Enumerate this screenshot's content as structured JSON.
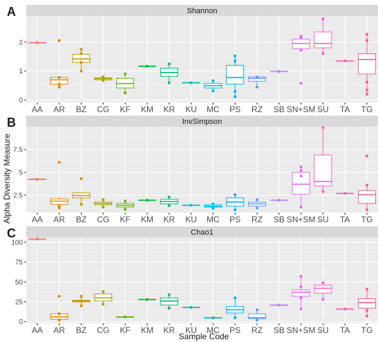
{
  "chart_data": {
    "type": "box",
    "xlabel": "Sample Code",
    "ylabel": "Alpha Diversity Measure",
    "categories": [
      "AA",
      "AR",
      "BZ",
      "CG",
      "KF",
      "KM",
      "KR",
      "KU",
      "MC",
      "PS",
      "RZ",
      "SB",
      "SN+SM",
      "SU",
      "TA",
      "TG"
    ],
    "colors": [
      "#F8766D",
      "#E58700",
      "#C99800",
      "#A3A500",
      "#6BB100",
      "#00BA38",
      "#00BF7D",
      "#00C0AF",
      "#00BCD8",
      "#00B0F6",
      "#619CFF",
      "#B983FF",
      "#E76BF3",
      "#FD61D1",
      "#FF67A4",
      "#F0609A"
    ],
    "panels": [
      {
        "letter": "A",
        "title": "Shannon",
        "ylim": [
          -0.08,
          2.9
        ],
        "yticks": [
          0,
          1,
          2
        ],
        "boxes": [
          {
            "cat": "AA",
            "q1": 1.98,
            "med": 1.98,
            "q3": 1.98,
            "lo": 1.98,
            "hi": 1.98,
            "points": [
              1.98
            ]
          },
          {
            "cat": "AR",
            "q1": 0.55,
            "med": 0.7,
            "q3": 0.78,
            "lo": 0.45,
            "hi": 0.8,
            "points": [
              0.45,
              0.55,
              0.78,
              2.05
            ]
          },
          {
            "cat": "BZ",
            "q1": 1.3,
            "med": 1.42,
            "q3": 1.58,
            "lo": 1.0,
            "hi": 1.75,
            "points": [
              1.0,
              1.3,
              1.6,
              1.75
            ]
          },
          {
            "cat": "CG",
            "q1": 0.7,
            "med": 0.74,
            "q3": 0.77,
            "lo": 0.67,
            "hi": 0.8,
            "points": [
              0.68,
              0.74,
              0.8
            ]
          },
          {
            "cat": "KF",
            "q1": 0.42,
            "med": 0.57,
            "q3": 0.75,
            "lo": 0.23,
            "hi": 0.92,
            "points": [
              0.25,
              0.9
            ]
          },
          {
            "cat": "KM",
            "q1": 1.17,
            "med": 1.17,
            "q3": 1.17,
            "lo": 1.17,
            "hi": 1.17,
            "points": [
              1.17
            ]
          },
          {
            "cat": "KR",
            "q1": 0.82,
            "med": 0.95,
            "q3": 1.1,
            "lo": 0.6,
            "hi": 1.25,
            "points": [
              0.6,
              1.25
            ]
          },
          {
            "cat": "KU",
            "q1": 0.6,
            "med": 0.6,
            "q3": 0.6,
            "lo": 0.6,
            "hi": 0.6,
            "points": [
              0.6
            ]
          },
          {
            "cat": "MC",
            "q1": 0.42,
            "med": 0.5,
            "q3": 0.58,
            "lo": 0.32,
            "hi": 0.67,
            "points": [
              0.32,
              0.67
            ]
          },
          {
            "cat": "PS",
            "q1": 0.55,
            "med": 0.78,
            "q3": 1.2,
            "lo": 0.12,
            "hi": 1.52,
            "points": [
              0.12,
              0.3,
              1.35,
              1.52
            ]
          },
          {
            "cat": "RZ",
            "q1": 0.65,
            "med": 0.75,
            "q3": 0.8,
            "lo": 0.45,
            "hi": 0.8,
            "points": [
              0.45,
              0.8
            ]
          },
          {
            "cat": "SB",
            "q1": 0.99,
            "med": 0.99,
            "q3": 0.99,
            "lo": 0.99,
            "hi": 0.99,
            "points": [
              0.99
            ]
          },
          {
            "cat": "SN+SM",
            "q1": 1.77,
            "med": 1.95,
            "q3": 2.1,
            "lo": 1.72,
            "hi": 2.2,
            "points": [
              0.58,
              1.72,
              2.15,
              2.2
            ]
          },
          {
            "cat": "SU",
            "q1": 1.8,
            "med": 1.95,
            "q3": 2.35,
            "lo": 1.6,
            "hi": 2.8,
            "points": [
              1.6,
              2.8
            ]
          },
          {
            "cat": "TA",
            "q1": 1.35,
            "med": 1.35,
            "q3": 1.35,
            "lo": 1.35,
            "hi": 1.35,
            "points": [
              1.35
            ]
          },
          {
            "cat": "TG",
            "q1": 0.9,
            "med": 1.4,
            "q3": 1.6,
            "lo": 0.2,
            "hi": 2.27,
            "points": [
              0.2,
              0.35,
              0.62,
              2.05,
              2.27
            ]
          }
        ]
      },
      {
        "letter": "B",
        "title": "InvSimpson",
        "ylim": [
          0.6,
          10.0
        ],
        "yticks": [
          2.5,
          5.0,
          7.5
        ],
        "boxes": [
          {
            "cat": "AA",
            "q1": 4.25,
            "med": 4.25,
            "q3": 4.25,
            "lo": 4.25,
            "hi": 4.25,
            "points": [
              4.25
            ]
          },
          {
            "cat": "AR",
            "q1": 1.5,
            "med": 1.85,
            "q3": 2.1,
            "lo": 1.1,
            "hi": 2.3,
            "points": [
              1.1,
              1.3,
              6.1
            ]
          },
          {
            "cat": "BZ",
            "q1": 2.2,
            "med": 2.45,
            "q3": 2.75,
            "lo": 1.5,
            "hi": 2.8,
            "points": [
              1.5,
              4.3
            ]
          },
          {
            "cat": "CG",
            "q1": 1.45,
            "med": 1.6,
            "q3": 1.75,
            "lo": 1.2,
            "hi": 2.0,
            "points": [
              1.2,
              2.0
            ]
          },
          {
            "cat": "KF",
            "q1": 1.2,
            "med": 1.4,
            "q3": 1.6,
            "lo": 0.9,
            "hi": 1.9,
            "points": [
              0.95,
              1.85
            ]
          },
          {
            "cat": "KM",
            "q1": 1.95,
            "med": 1.95,
            "q3": 1.95,
            "lo": 1.95,
            "hi": 1.95,
            "points": [
              1.95
            ]
          },
          {
            "cat": "KR",
            "q1": 1.55,
            "med": 1.8,
            "q3": 2.05,
            "lo": 1.35,
            "hi": 2.3,
            "points": [
              1.35,
              2.3
            ]
          },
          {
            "cat": "KU",
            "q1": 1.4,
            "med": 1.4,
            "q3": 1.4,
            "lo": 1.4,
            "hi": 1.4,
            "points": [
              1.4
            ]
          },
          {
            "cat": "MC",
            "q1": 1.2,
            "med": 1.3,
            "q3": 1.45,
            "lo": 1.05,
            "hi": 1.55,
            "points": [
              1.05,
              1.55
            ]
          },
          {
            "cat": "PS",
            "q1": 1.3,
            "med": 1.75,
            "q3": 2.2,
            "lo": 0.9,
            "hi": 2.7,
            "points": [
              0.9,
              2.55
            ]
          },
          {
            "cat": "RZ",
            "q1": 1.3,
            "med": 1.55,
            "q3": 1.75,
            "lo": 1.1,
            "hi": 2.0,
            "points": [
              1.1,
              2.0
            ]
          },
          {
            "cat": "SB",
            "q1": 1.95,
            "med": 1.95,
            "q3": 1.95,
            "lo": 1.95,
            "hi": 1.95,
            "points": [
              1.95
            ]
          },
          {
            "cat": "SN+SM",
            "q1": 2.6,
            "med": 3.7,
            "q3": 5.0,
            "lo": 1.2,
            "hi": 5.6,
            "points": [
              1.2,
              4.6,
              5.2,
              5.6
            ]
          },
          {
            "cat": "SU",
            "q1": 3.5,
            "med": 4.0,
            "q3": 6.9,
            "lo": 2.9,
            "hi": 9.9,
            "points": [
              2.9,
              9.9
            ]
          },
          {
            "cat": "TA",
            "q1": 2.7,
            "med": 2.7,
            "q3": 2.7,
            "lo": 2.7,
            "hi": 2.7,
            "points": [
              2.7
            ]
          },
          {
            "cat": "TG",
            "q1": 1.6,
            "med": 2.55,
            "q3": 3.0,
            "lo": 0.9,
            "hi": 3.6,
            "points": [
              0.9,
              3.6,
              6.8
            ]
          }
        ]
      },
      {
        "letter": "C",
        "title": "Chao1",
        "ylim": [
          -2,
          106
        ],
        "yticks": [
          0,
          25,
          50,
          75,
          100
        ],
        "boxes": [
          {
            "cat": "AA",
            "q1": 104,
            "med": 104,
            "q3": 104,
            "lo": 104,
            "hi": 104,
            "points": [
              104
            ]
          },
          {
            "cat": "AR",
            "q1": 3,
            "med": 6,
            "q3": 10,
            "lo": 2,
            "hi": 12,
            "points": [
              2,
              10,
              32
            ]
          },
          {
            "cat": "BZ",
            "q1": 25,
            "med": 26,
            "q3": 27,
            "lo": 20,
            "hi": 32,
            "points": [
              20,
              32
            ]
          },
          {
            "cat": "CG",
            "q1": 26,
            "med": 30,
            "q3": 35,
            "lo": 22,
            "hi": 38,
            "points": [
              22,
              38
            ]
          },
          {
            "cat": "KF",
            "q1": 6,
            "med": 6,
            "q3": 6,
            "lo": 5,
            "hi": 6,
            "points": [
              6
            ]
          },
          {
            "cat": "KM",
            "q1": 28,
            "med": 28,
            "q3": 28,
            "lo": 28,
            "hi": 28,
            "points": [
              28
            ]
          },
          {
            "cat": "KR",
            "q1": 21,
            "med": 26,
            "q3": 30,
            "lo": 17,
            "hi": 34,
            "points": [
              17,
              34
            ]
          },
          {
            "cat": "KU",
            "q1": 18,
            "med": 18,
            "q3": 18,
            "lo": 18,
            "hi": 18,
            "points": [
              18
            ]
          },
          {
            "cat": "MC",
            "q1": 5,
            "med": 5,
            "q3": 5,
            "lo": 5,
            "hi": 5,
            "points": [
              5
            ]
          },
          {
            "cat": "PS",
            "q1": 11,
            "med": 15,
            "q3": 19,
            "lo": 5,
            "hi": 30,
            "points": [
              5,
              30
            ]
          },
          {
            "cat": "RZ",
            "q1": 4,
            "med": 5,
            "q3": 10,
            "lo": 2,
            "hi": 15,
            "points": [
              2,
              15
            ]
          },
          {
            "cat": "SB",
            "q1": 21,
            "med": 21,
            "q3": 21,
            "lo": 21,
            "hi": 21,
            "points": [
              21
            ]
          },
          {
            "cat": "SN+SM",
            "q1": 32,
            "med": 37,
            "q3": 40,
            "lo": 16,
            "hi": 57,
            "points": [
              16,
              30,
              44,
              57
            ]
          },
          {
            "cat": "SU",
            "q1": 36,
            "med": 42,
            "q3": 46,
            "lo": 28,
            "hi": 49,
            "points": [
              28,
              49
            ]
          },
          {
            "cat": "TA",
            "q1": 16,
            "med": 16,
            "q3": 16,
            "lo": 16,
            "hi": 16,
            "points": [
              16
            ]
          },
          {
            "cat": "TG",
            "q1": 17,
            "med": 24,
            "q3": 29,
            "lo": 7,
            "hi": 41,
            "points": [
              7,
              14,
              41
            ]
          }
        ]
      }
    ]
  }
}
